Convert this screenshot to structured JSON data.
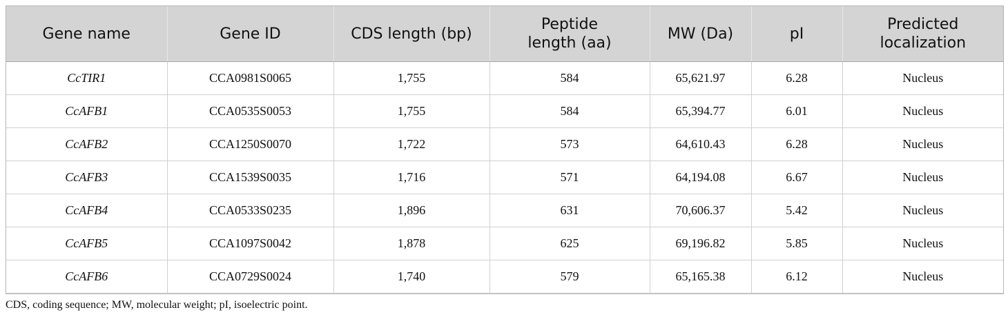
{
  "table": {
    "headers": [
      {
        "line1": "Gene name",
        "line2": ""
      },
      {
        "line1": "Gene ID",
        "line2": ""
      },
      {
        "line1": "CDS length (bp)",
        "line2": ""
      },
      {
        "line1": "Peptide",
        "line2": "length (aa)"
      },
      {
        "line1": "MW (Da)",
        "line2": ""
      },
      {
        "line1": "pI",
        "line2": ""
      },
      {
        "line1": "Predicted",
        "line2": "localization"
      }
    ],
    "rows": [
      [
        "CcTIR1",
        "CCA0981S0065",
        "1,755",
        "584",
        "65,621.97",
        "6.28",
        "Nucleus"
      ],
      [
        "CcAFB1",
        "CCA0535S0053",
        "1,755",
        "584",
        "65,394.77",
        "6.01",
        "Nucleus"
      ],
      [
        "CcAFB2",
        "CCA1250S0070",
        "1,722",
        "573",
        "64,610.43",
        "6.28",
        "Nucleus"
      ],
      [
        "CcAFB3",
        "CCA1539S0035",
        "1,716",
        "571",
        "64,194.08",
        "6.67",
        "Nucleus"
      ],
      [
        "CcAFB4",
        "CCA0533S0235",
        "1,896",
        "631",
        "70,606.37",
        "5.42",
        "Nucleus"
      ],
      [
        "CcAFB5",
        "CCA1097S0042",
        "1,878",
        "625",
        "69,196.82",
        "5.85",
        "Nucleus"
      ],
      [
        "CcAFB6",
        "CCA0729S0024",
        "1,740",
        "579",
        "65,165.38",
        "6.12",
        "Nucleus"
      ]
    ]
  },
  "footnote": "CDS, coding sequence; MW, molecular weight; pI, isoelectric point.",
  "colors": {
    "header_bg": "#d4d4d4",
    "border": "#d0d0d0"
  }
}
